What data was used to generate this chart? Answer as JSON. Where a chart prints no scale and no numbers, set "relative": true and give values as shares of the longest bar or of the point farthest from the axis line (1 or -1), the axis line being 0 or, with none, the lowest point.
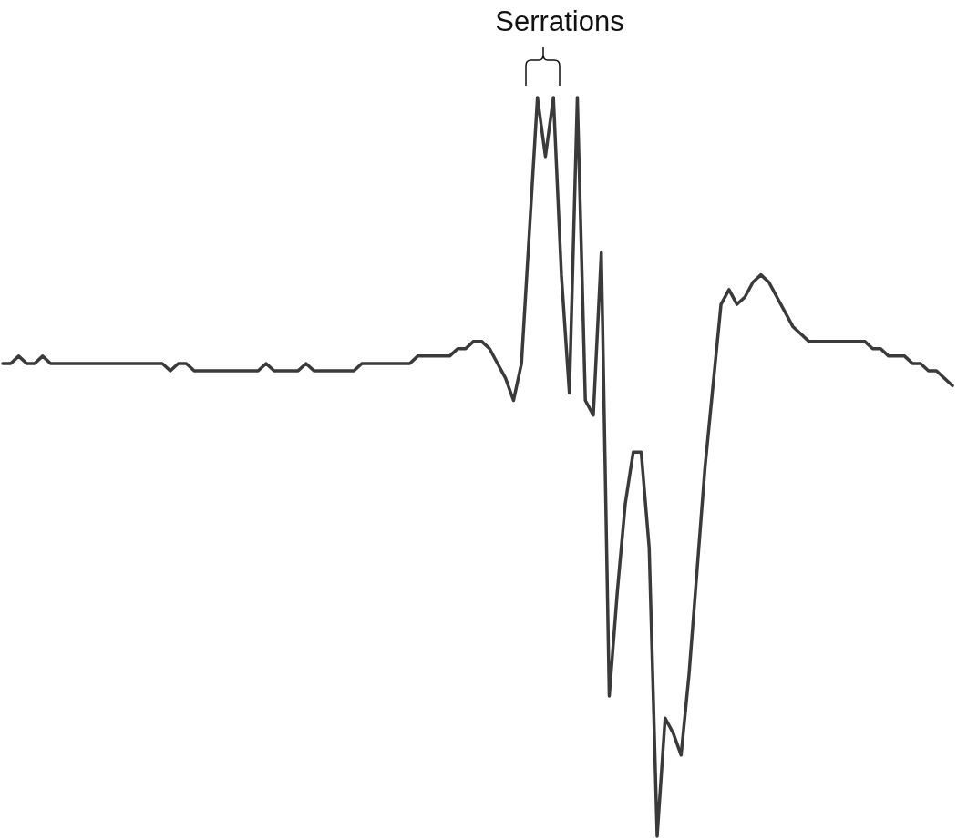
{
  "chart_data": {
    "type": "line",
    "relative": true,
    "categories": [
      null,
      null,
      null,
      null,
      null,
      null,
      null,
      null,
      null,
      null,
      null,
      null,
      null,
      null,
      null,
      null,
      null,
      null,
      null,
      null,
      null,
      null,
      null,
      null,
      null,
      null,
      null,
      null,
      null,
      null,
      null,
      null,
      null,
      null,
      null,
      null,
      null,
      null,
      null,
      null,
      null,
      null,
      null,
      null,
      null,
      null,
      null,
      null,
      null,
      null,
      null,
      null,
      null,
      null,
      null,
      null,
      null,
      null,
      null,
      null,
      null,
      null,
      null,
      null,
      null,
      null,
      null,
      null,
      null,
      null,
      null,
      null,
      null,
      null,
      null,
      null,
      null,
      null,
      null,
      null,
      null,
      null,
      null,
      null,
      null,
      null,
      null,
      null,
      null,
      null,
      null,
      null,
      null,
      null,
      null,
      null,
      null,
      null,
      null,
      null,
      null,
      null,
      null,
      null,
      null,
      null,
      null,
      null,
      null,
      null,
      null,
      null,
      null,
      null,
      null,
      null,
      null,
      null,
      null,
      null
    ],
    "series": [
      {
        "color": "#3a3a3a",
        "values": [
          0.64,
          0.64,
          0.65,
          0.64,
          0.64,
          0.65,
          0.64,
          0.64,
          0.64,
          0.64,
          0.64,
          0.64,
          0.64,
          0.64,
          0.64,
          0.64,
          0.64,
          0.64,
          0.64,
          0.64,
          0.64,
          0.63,
          0.64,
          0.64,
          0.63,
          0.63,
          0.63,
          0.63,
          0.63,
          0.63,
          0.63,
          0.63,
          0.63,
          0.64,
          0.63,
          0.63,
          0.63,
          0.63,
          0.64,
          0.63,
          0.63,
          0.63,
          0.63,
          0.63,
          0.63,
          0.64,
          0.64,
          0.64,
          0.64,
          0.64,
          0.64,
          0.64,
          0.65,
          0.65,
          0.65,
          0.65,
          0.65,
          0.66,
          0.66,
          0.67,
          0.67,
          0.66,
          0.64,
          0.62,
          0.59,
          0.64,
          0.82,
          1,
          0.92,
          1,
          0.76,
          0.6,
          1,
          0.59,
          0.57,
          0.79,
          0.19,
          0.33,
          0.45,
          0.52,
          0.52,
          0.39,
          0,
          0.16,
          0.14,
          0.11,
          0.22,
          0.36,
          0.5,
          0.61,
          0.72,
          0.74,
          0.72,
          0.73,
          0.75,
          0.76,
          0.75,
          0.73,
          0.71,
          0.69,
          0.68,
          0.67,
          0.67,
          0.67,
          0.67,
          0.67,
          0.67,
          0.67,
          0.67,
          0.66,
          0.66,
          0.65,
          0.65,
          0.65,
          0.64,
          0.64,
          0.63,
          0.63,
          0.62,
          0.61
        ]
      }
    ],
    "annotations": [
      "Serrations"
    ]
  }
}
